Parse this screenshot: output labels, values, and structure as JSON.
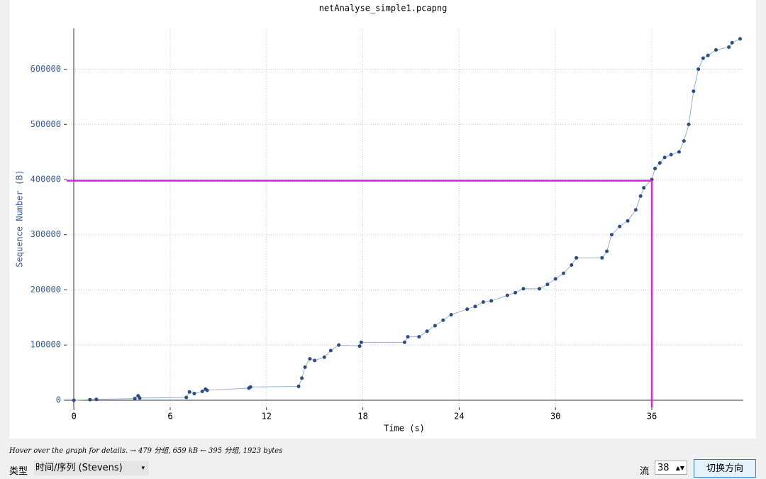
{
  "chart_data": {
    "type": "line",
    "title": "netAnalyse_simple1.pcapng",
    "x_label": "Time (s)",
    "y_label": "Sequence Number (B)",
    "xlim": [
      -0.45,
      41.7
    ],
    "ylim": [
      -12900,
      674000
    ],
    "xticks": [
      0,
      6,
      12,
      18,
      24,
      30,
      36
    ],
    "yticks": [
      0,
      100000,
      200000,
      300000,
      400000,
      500000,
      600000
    ],
    "grid": true,
    "crosshair": {
      "x": 36,
      "y": 398000,
      "color": "#e020e0"
    },
    "series": [
      {
        "color": "#2a4d8a",
        "x": [
          0,
          1,
          1.4,
          3.8,
          4,
          4.1,
          7,
          7.2,
          7.5,
          8,
          8.2,
          8.3,
          10.9,
          11,
          14,
          14.2,
          14.4,
          14.7,
          15,
          15.6,
          16,
          16.5,
          17.8,
          17.9,
          20.6,
          20.8,
          21.5,
          22,
          22.5,
          23,
          23.5,
          24.5,
          25,
          25.5,
          26,
          27,
          27.5,
          28,
          29,
          29.5,
          30,
          30.5,
          31,
          31.3,
          32.9,
          33.2,
          33.5,
          34,
          34.5,
          35,
          35.3,
          35.5,
          36,
          36.2,
          36.5,
          36.8,
          37.2,
          37.7,
          38,
          38.3,
          38.6,
          38.9,
          39.2,
          39.5,
          40,
          40.8,
          41,
          41.5
        ],
        "values": [
          0,
          1000,
          1500,
          3000,
          8000,
          4000,
          5000,
          15000,
          12000,
          16000,
          20000,
          18000,
          22000,
          24000,
          25000,
          40000,
          60000,
          75000,
          72000,
          78000,
          90000,
          100000,
          98000,
          105000,
          105000,
          115000,
          115000,
          125000,
          135000,
          145000,
          155000,
          165000,
          170000,
          178000,
          180000,
          190000,
          195000,
          202000,
          202000,
          210000,
          220000,
          230000,
          245000,
          258000,
          258000,
          270000,
          300000,
          315000,
          325000,
          345000,
          370000,
          385000,
          400000,
          420000,
          430000,
          440000,
          445000,
          450000,
          470000,
          500000,
          560000,
          600000,
          620000,
          625000,
          635000,
          640000,
          648000,
          655000
        ]
      }
    ]
  },
  "status": "Hover over the graph for details. → 479 分组, 659 kB ← 395 分组, 1923 bytes",
  "controls": {
    "type_label": "类型",
    "type_value": "时间/序列 (Stevens)",
    "stream_label": "流",
    "stream_value": "38",
    "button": "切换方向"
  }
}
